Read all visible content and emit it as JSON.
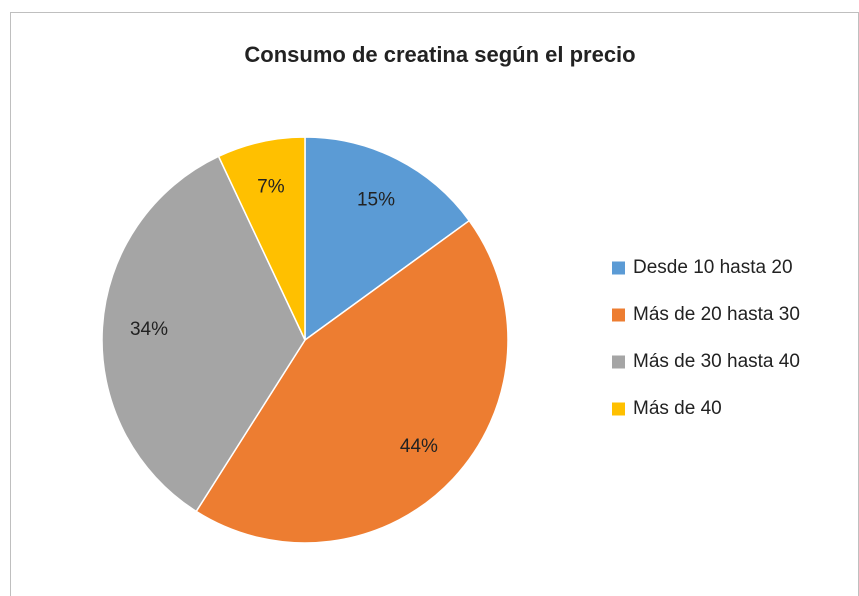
{
  "chart_data": {
    "type": "pie",
    "title": "Consumo de creatina según el precio",
    "categories": [
      "Desde 10 hasta 20",
      "Más de 20 hasta 30",
      "Más de 30 hasta 40",
      "Más de 40"
    ],
    "values": [
      15,
      44,
      34,
      7
    ],
    "value_labels": [
      "15%",
      "44%",
      "34%",
      "7%"
    ],
    "colors": [
      "#5b9bd5",
      "#ed7d31",
      "#a5a5a5",
      "#ffc000"
    ],
    "legend": "right"
  }
}
